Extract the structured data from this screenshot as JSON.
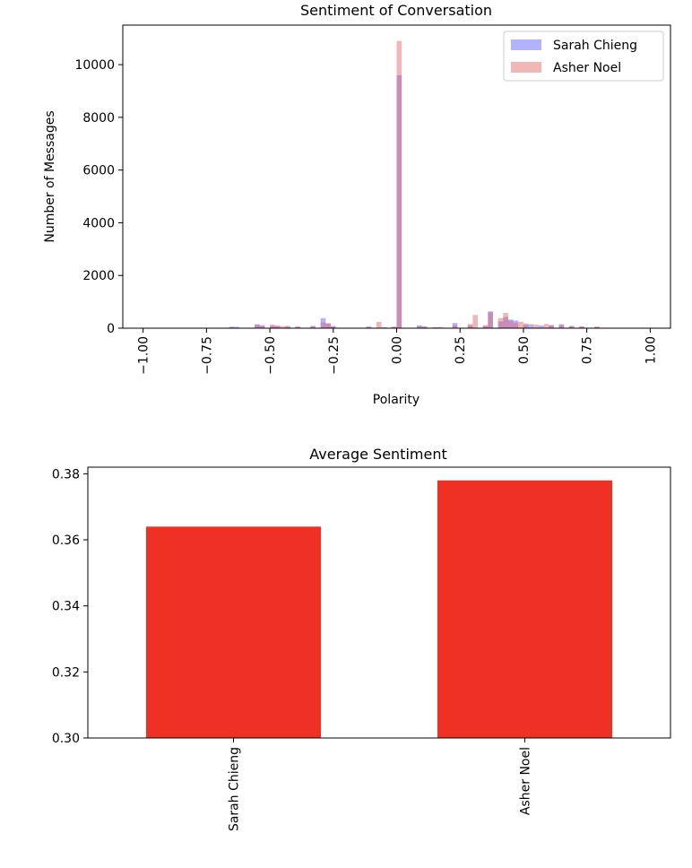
{
  "chart_data": [
    {
      "type": "bar",
      "subtype": "histogram",
      "title": "Sentiment of Conversation",
      "xlabel": "Polarity",
      "ylabel": "Number of Messages",
      "xlim": [
        -1.0,
        1.0
      ],
      "ylim": [
        0,
        11500
      ],
      "xticks": [
        "−1.00",
        "−0.75",
        "−0.50",
        "−0.25",
        "0.00",
        "0.25",
        "0.50",
        "0.75",
        "1.00"
      ],
      "xtick_values": [
        -1.0,
        -0.75,
        -0.5,
        -0.25,
        0.0,
        0.25,
        0.5,
        0.75,
        1.0
      ],
      "yticks": [
        "0",
        "2000",
        "4000",
        "6000",
        "8000",
        "10000"
      ],
      "ytick_values": [
        0,
        2000,
        4000,
        6000,
        8000,
        10000
      ],
      "bin_width": 0.02,
      "grid": false,
      "legend_position": "top-right",
      "series": [
        {
          "name": "Sarah Chieng",
          "color": "#0000ff",
          "alpha": 0.3,
          "x": [
            -0.66,
            -0.64,
            -0.56,
            -0.54,
            -0.5,
            -0.48,
            -0.44,
            -0.4,
            -0.34,
            -0.3,
            -0.28,
            -0.26,
            -0.12,
            -0.06,
            -0.02,
            0.0,
            0.08,
            0.1,
            0.14,
            0.22,
            0.28,
            0.34,
            0.36,
            0.4,
            0.42,
            0.44,
            0.46,
            0.5,
            0.52,
            0.56,
            0.6,
            0.64,
            0.68,
            0.72,
            0.78
          ],
          "values": [
            60,
            50,
            150,
            110,
            90,
            80,
            60,
            50,
            90,
            380,
            190,
            80,
            60,
            40,
            40,
            9600,
            110,
            70,
            40,
            200,
            100,
            80,
            640,
            260,
            420,
            330,
            290,
            130,
            150,
            100,
            120,
            150,
            80,
            60,
            50
          ]
        },
        {
          "name": "Asher Noel",
          "color": "#e06060",
          "alpha": 0.45,
          "x": [
            -0.66,
            -0.56,
            -0.54,
            -0.5,
            -0.48,
            -0.46,
            -0.44,
            -0.4,
            -0.34,
            -0.3,
            -0.28,
            -0.26,
            -0.12,
            -0.08,
            -0.02,
            0.0,
            0.08,
            0.1,
            0.16,
            0.22,
            0.28,
            0.3,
            0.34,
            0.36,
            0.4,
            0.42,
            0.44,
            0.46,
            0.48,
            0.5,
            0.54,
            0.58,
            0.6,
            0.64,
            0.68,
            0.72,
            0.78
          ],
          "values": [
            30,
            130,
            90,
            140,
            100,
            80,
            90,
            70,
            60,
            220,
            170,
            60,
            50,
            240,
            60,
            10900,
            70,
            60,
            50,
            110,
            160,
            500,
            120,
            600,
            380,
            580,
            280,
            200,
            240,
            180,
            140,
            160,
            110,
            120,
            80,
            70,
            60
          ]
        }
      ]
    },
    {
      "type": "bar",
      "title": "Average Sentiment",
      "xlabel": "",
      "ylabel": "",
      "categories": [
        "Sarah Chieng",
        "Asher Noel"
      ],
      "values": [
        0.364,
        0.378
      ],
      "ylim": [
        0.3,
        0.382
      ],
      "yticks": [
        "0.30",
        "0.32",
        "0.34",
        "0.36",
        "0.38"
      ],
      "ytick_values": [
        0.3,
        0.32,
        0.34,
        0.36,
        0.38
      ],
      "bar_color": "#ee3124",
      "grid": false
    }
  ]
}
